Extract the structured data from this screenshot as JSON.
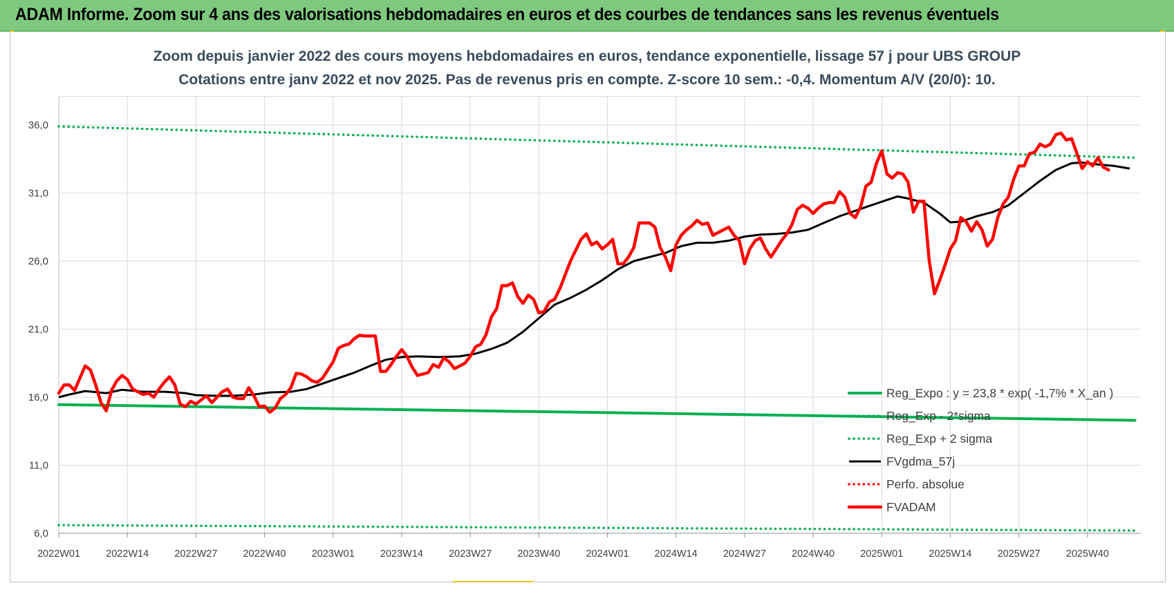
{
  "banner": "ADAM Informe. Zoom sur 4 ans des valorisations hebdomadaires en euros et des courbes de tendances sans les revenus éventuels",
  "chart_data": {
    "type": "line",
    "title": "Zoom depuis janvier 2022 des cours moyens hebdomadaires en euros, tendance exponentielle, lissage 57 j pour UBS GROUP",
    "subtitle": "Cotations entre janv 2022 et nov 2025. Pas de revenus pris en compte. Z-score 10 sem.: -0,4. Momentum A/V (20/0): 10.",
    "xlabel": "",
    "ylabel": "",
    "ylim": [
      6.0,
      38.0
    ],
    "yticks": [
      "6,0",
      "11,0",
      "16,0",
      "21,0",
      "26,0",
      "31,0",
      "36,0"
    ],
    "xticks": [
      "2022W01",
      "2022W14",
      "2022W27",
      "2022W40",
      "2023W01",
      "2023W14",
      "2023W27",
      "2023W40",
      "2024W01",
      "2024W14",
      "2024W27",
      "2024W40",
      "2025W01",
      "2025W14",
      "2025W27",
      "2025W40"
    ],
    "legend_position": "lower-right",
    "grid": true,
    "week_start": "2022W01",
    "series": [
      {
        "name": "Reg_Expo : y = 23,8 * exp( -1,7% *  X_an )",
        "color": "#00b050",
        "style": "solid-thick",
        "points": [
          [
            0,
            15.45
          ],
          [
            204,
            14.3
          ]
        ]
      },
      {
        "name": "Reg_Exp - 2*sigma",
        "color": "#00b050",
        "style": "dotted",
        "points": [
          [
            0,
            6.6
          ],
          [
            204,
            6.2
          ]
        ]
      },
      {
        "name": "Reg_Exp + 2 sigma",
        "color": "#00b050",
        "style": "dotted",
        "points": [
          [
            0,
            35.9
          ],
          [
            204,
            33.6
          ]
        ]
      },
      {
        "name": "FVgdma_57j",
        "color": "#000000",
        "style": "solid",
        "points": [
          [
            0,
            16.0
          ],
          [
            2,
            16.2
          ],
          [
            5,
            16.45
          ],
          [
            9,
            16.3
          ],
          [
            12,
            16.55
          ],
          [
            16,
            16.4
          ],
          [
            20,
            16.4
          ],
          [
            24,
            16.3
          ],
          [
            26,
            16.15
          ],
          [
            30,
            16.1
          ],
          [
            33,
            16.1
          ],
          [
            37,
            16.2
          ],
          [
            40,
            16.35
          ],
          [
            44,
            16.4
          ],
          [
            47,
            16.6
          ],
          [
            50,
            17.0
          ],
          [
            53,
            17.4
          ],
          [
            56,
            17.8
          ],
          [
            59,
            18.3
          ],
          [
            62,
            18.75
          ],
          [
            65,
            18.95
          ],
          [
            68,
            19.0
          ],
          [
            72,
            18.95
          ],
          [
            76,
            19.0
          ],
          [
            79,
            19.2
          ],
          [
            82,
            19.55
          ],
          [
            85,
            20.0
          ],
          [
            88,
            20.8
          ],
          [
            91,
            21.8
          ],
          [
            94,
            22.8
          ],
          [
            97,
            23.3
          ],
          [
            100,
            23.9
          ],
          [
            103,
            24.6
          ],
          [
            106,
            25.4
          ],
          [
            109,
            26.0
          ],
          [
            112,
            26.3
          ],
          [
            115,
            26.6
          ],
          [
            118,
            27.1
          ],
          [
            121,
            27.35
          ],
          [
            124,
            27.35
          ],
          [
            127,
            27.5
          ],
          [
            130,
            27.8
          ],
          [
            133,
            27.95
          ],
          [
            136,
            28.0
          ],
          [
            139,
            28.1
          ],
          [
            142,
            28.3
          ],
          [
            145,
            28.8
          ],
          [
            148,
            29.3
          ],
          [
            151,
            29.7
          ],
          [
            154,
            30.1
          ],
          [
            157,
            30.5
          ],
          [
            159,
            30.75
          ],
          [
            161,
            30.6
          ],
          [
            164,
            30.3
          ],
          [
            167,
            29.5
          ],
          [
            169,
            28.85
          ],
          [
            171,
            28.9
          ],
          [
            174,
            29.3
          ],
          [
            177,
            29.6
          ],
          [
            180,
            30.1
          ],
          [
            183,
            31.0
          ],
          [
            186,
            31.9
          ],
          [
            189,
            32.7
          ],
          [
            192,
            33.2
          ],
          [
            194,
            33.25
          ],
          [
            197,
            33.1
          ],
          [
            200,
            33.0
          ],
          [
            203,
            32.8
          ]
        ]
      },
      {
        "name": "Perfo. absolue",
        "color": "#ff0000",
        "style": "dotted",
        "points": []
      },
      {
        "name": "FVADAM",
        "color": "#ff0000",
        "style": "solid-thick",
        "points": [
          [
            0,
            16.3
          ],
          [
            1,
            16.9
          ],
          [
            2,
            16.9
          ],
          [
            3,
            16.5
          ],
          [
            4,
            17.4
          ],
          [
            5,
            18.3
          ],
          [
            6,
            18.0
          ],
          [
            7,
            16.9
          ],
          [
            8,
            15.6
          ],
          [
            9,
            15.0
          ],
          [
            10,
            16.5
          ],
          [
            11,
            17.2
          ],
          [
            12,
            17.6
          ],
          [
            13,
            17.3
          ],
          [
            14,
            16.6
          ],
          [
            15,
            16.4
          ],
          [
            16,
            16.2
          ],
          [
            17,
            16.3
          ],
          [
            18,
            16.0
          ],
          [
            19,
            16.6
          ],
          [
            20,
            17.1
          ],
          [
            21,
            17.5
          ],
          [
            22,
            16.9
          ],
          [
            23,
            15.5
          ],
          [
            24,
            15.3
          ],
          [
            25,
            15.7
          ],
          [
            26,
            15.5
          ],
          [
            27,
            15.8
          ],
          [
            28,
            16.1
          ],
          [
            29,
            15.6
          ],
          [
            30,
            16.0
          ],
          [
            31,
            16.4
          ],
          [
            32,
            16.6
          ],
          [
            33,
            16.0
          ],
          [
            34,
            15.9
          ],
          [
            35,
            15.9
          ],
          [
            36,
            16.7
          ],
          [
            37,
            16.1
          ],
          [
            38,
            15.3
          ],
          [
            39,
            15.35
          ],
          [
            40,
            14.9
          ],
          [
            41,
            15.2
          ],
          [
            42,
            15.9
          ],
          [
            43,
            16.2
          ],
          [
            44,
            16.7
          ],
          [
            45,
            17.75
          ],
          [
            46,
            17.7
          ],
          [
            47,
            17.5
          ],
          [
            48,
            17.2
          ],
          [
            49,
            17.1
          ],
          [
            50,
            17.4
          ],
          [
            51,
            18.0
          ],
          [
            52,
            18.6
          ],
          [
            53,
            19.6
          ],
          [
            54,
            19.8
          ],
          [
            55,
            19.9
          ],
          [
            56,
            20.3
          ],
          [
            57,
            20.55
          ],
          [
            58,
            20.5
          ],
          [
            59,
            20.5
          ],
          [
            60,
            20.5
          ],
          [
            61,
            17.9
          ],
          [
            62,
            17.9
          ],
          [
            63,
            18.4
          ],
          [
            64,
            19.0
          ],
          [
            65,
            19.5
          ],
          [
            66,
            19.0
          ],
          [
            67,
            18.2
          ],
          [
            68,
            17.6
          ],
          [
            69,
            17.7
          ],
          [
            70,
            17.8
          ],
          [
            71,
            18.4
          ],
          [
            72,
            18.2
          ],
          [
            73,
            18.9
          ],
          [
            74,
            18.6
          ],
          [
            75,
            18.1
          ],
          [
            76,
            18.3
          ],
          [
            77,
            18.5
          ],
          [
            78,
            19.0
          ],
          [
            79,
            19.7
          ],
          [
            80,
            19.9
          ],
          [
            81,
            20.6
          ],
          [
            82,
            21.9
          ],
          [
            83,
            22.5
          ],
          [
            84,
            24.2
          ],
          [
            85,
            24.2
          ],
          [
            86,
            24.4
          ],
          [
            87,
            23.4
          ],
          [
            88,
            22.9
          ],
          [
            89,
            23.5
          ],
          [
            90,
            23.2
          ],
          [
            91,
            22.2
          ],
          [
            92,
            22.3
          ],
          [
            93,
            23.0
          ],
          [
            94,
            23.2
          ],
          [
            95,
            24.0
          ],
          [
            96,
            25.0
          ],
          [
            97,
            26.0
          ],
          [
            98,
            26.8
          ],
          [
            99,
            27.6
          ],
          [
            100,
            28.0
          ],
          [
            101,
            27.2
          ],
          [
            102,
            27.4
          ],
          [
            103,
            26.9
          ],
          [
            104,
            27.2
          ],
          [
            105,
            27.6
          ],
          [
            106,
            25.8
          ],
          [
            107,
            25.8
          ],
          [
            108,
            26.3
          ],
          [
            109,
            27.0
          ],
          [
            110,
            28.8
          ],
          [
            111,
            28.8
          ],
          [
            112,
            28.8
          ],
          [
            113,
            28.5
          ],
          [
            114,
            27.0
          ],
          [
            115,
            26.3
          ],
          [
            116,
            25.3
          ],
          [
            117,
            27.2
          ],
          [
            118,
            27.9
          ],
          [
            119,
            28.3
          ],
          [
            120,
            28.6
          ],
          [
            121,
            29.0
          ],
          [
            122,
            28.7
          ],
          [
            123,
            28.8
          ],
          [
            124,
            27.9
          ],
          [
            125,
            28.1
          ],
          [
            126,
            28.3
          ],
          [
            127,
            28.5
          ],
          [
            128,
            27.9
          ],
          [
            129,
            27.5
          ],
          [
            130,
            25.8
          ],
          [
            131,
            26.9
          ],
          [
            132,
            27.5
          ],
          [
            133,
            27.7
          ],
          [
            134,
            26.9
          ],
          [
            135,
            26.3
          ],
          [
            136,
            26.9
          ],
          [
            137,
            27.5
          ],
          [
            138,
            28.0
          ],
          [
            139,
            28.7
          ],
          [
            140,
            29.8
          ],
          [
            141,
            30.1
          ],
          [
            142,
            29.9
          ],
          [
            143,
            29.5
          ],
          [
            144,
            29.9
          ],
          [
            145,
            30.2
          ],
          [
            146,
            30.3
          ],
          [
            147,
            30.3
          ],
          [
            148,
            31.1
          ],
          [
            149,
            30.7
          ],
          [
            150,
            29.5
          ],
          [
            151,
            29.2
          ],
          [
            152,
            30.0
          ],
          [
            153,
            31.5
          ],
          [
            154,
            31.8
          ],
          [
            155,
            33.2
          ],
          [
            156,
            34.1
          ],
          [
            157,
            32.4
          ],
          [
            158,
            32.1
          ],
          [
            159,
            32.5
          ],
          [
            160,
            32.4
          ],
          [
            161,
            31.8
          ],
          [
            162,
            29.6
          ],
          [
            163,
            30.4
          ],
          [
            164,
            30.4
          ],
          [
            165,
            26.0
          ],
          [
            166,
            23.6
          ],
          [
            167,
            24.6
          ],
          [
            168,
            25.7
          ],
          [
            169,
            26.9
          ],
          [
            170,
            27.5
          ],
          [
            171,
            29.2
          ],
          [
            172,
            28.9
          ],
          [
            173,
            28.2
          ],
          [
            174,
            28.9
          ],
          [
            175,
            28.3
          ],
          [
            176,
            27.1
          ],
          [
            177,
            27.6
          ],
          [
            178,
            29.2
          ],
          [
            179,
            30.2
          ],
          [
            180,
            30.7
          ],
          [
            181,
            32.0
          ],
          [
            182,
            33.0
          ],
          [
            183,
            33.0
          ],
          [
            184,
            33.9
          ],
          [
            185,
            34.0
          ],
          [
            186,
            34.6
          ],
          [
            187,
            34.4
          ],
          [
            188,
            34.6
          ],
          [
            189,
            35.3
          ],
          [
            190,
            35.4
          ],
          [
            191,
            34.9
          ],
          [
            192,
            35.0
          ],
          [
            193,
            33.9
          ],
          [
            194,
            32.8
          ],
          [
            195,
            33.3
          ],
          [
            196,
            33.0
          ],
          [
            197,
            33.6
          ],
          [
            198,
            32.9
          ],
          [
            199,
            32.7
          ]
        ]
      }
    ]
  }
}
